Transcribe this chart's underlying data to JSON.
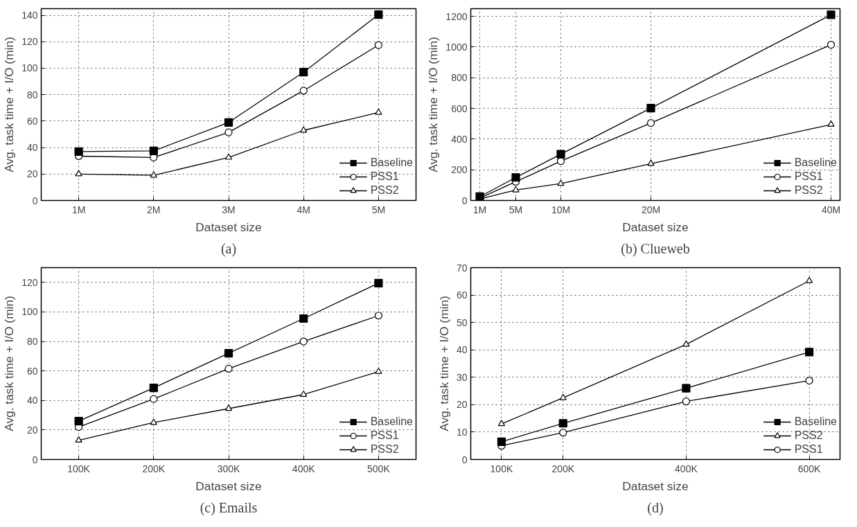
{
  "chart_data": [
    {
      "type": "line",
      "title": "(a)",
      "xlabel": "Dataset size",
      "ylabel": "Avg. task time + I/O (min)",
      "x": [
        1,
        2,
        3,
        4,
        5
      ],
      "xlim": [
        0.5,
        5.5
      ],
      "xticks": [
        {
          "value": 1,
          "label": "1M"
        },
        {
          "value": 2,
          "label": "2M"
        },
        {
          "value": 3,
          "label": "3M"
        },
        {
          "value": 4,
          "label": "4M"
        },
        {
          "value": 5,
          "label": "5M"
        }
      ],
      "ylim": [
        0,
        145
      ],
      "yticks": [
        0,
        20,
        40,
        60,
        80,
        100,
        120,
        140
      ],
      "grid": true,
      "legend": "bottom right",
      "series": [
        {
          "name": "Baseline",
          "color": "#000000",
          "marker": "square",
          "values": [
            37,
            37.5,
            59,
            97,
            140.5
          ]
        },
        {
          "name": "PSS1",
          "color": "#000000",
          "marker": "circle",
          "values": [
            33.5,
            32.5,
            51.5,
            83,
            117.5
          ]
        },
        {
          "name": "PSS2",
          "color": "#000000",
          "marker": "triangle",
          "values": [
            20,
            19,
            32.5,
            53,
            66.5
          ]
        }
      ]
    },
    {
      "type": "line",
      "title": "(b) Clueweb",
      "xlabel": "Dataset size",
      "ylabel": "Avg. task time + I/O (min)",
      "x": [
        1,
        5,
        10,
        20,
        40
      ],
      "xlim": [
        0,
        41
      ],
      "xticks": [
        {
          "value": 1,
          "label": "1M"
        },
        {
          "value": 5,
          "label": "5M"
        },
        {
          "value": 10,
          "label": "10M"
        },
        {
          "value": 20,
          "label": "20M"
        },
        {
          "value": 40,
          "label": "40M"
        }
      ],
      "ylim": [
        0,
        1250
      ],
      "yticks": [
        0,
        200,
        400,
        600,
        800,
        1000,
        1200
      ],
      "grid": true,
      "legend": "bottom right",
      "series": [
        {
          "name": "Baseline",
          "color": "#000000",
          "marker": "square",
          "values": [
            25,
            150,
            302,
            602,
            1210
          ]
        },
        {
          "name": "PSS1",
          "color": "#000000",
          "marker": "circle",
          "values": [
            15,
            122,
            257,
            505,
            1015
          ]
        },
        {
          "name": "PSS2",
          "color": "#000000",
          "marker": "triangle",
          "values": [
            10,
            68,
            110,
            240,
            495
          ]
        }
      ]
    },
    {
      "type": "line",
      "title": "(c) Emails",
      "xlabel": "Dataset size",
      "ylabel": "Avg. task time + I/O (min)",
      "x": [
        100,
        200,
        300,
        400,
        500
      ],
      "xlim": [
        50,
        550
      ],
      "xticks": [
        {
          "value": 100,
          "label": "100K"
        },
        {
          "value": 200,
          "label": "200K"
        },
        {
          "value": 300,
          "label": "300K"
        },
        {
          "value": 400,
          "label": "400K"
        },
        {
          "value": 500,
          "label": "500K"
        }
      ],
      "ylim": [
        0,
        130
      ],
      "yticks": [
        0,
        20,
        40,
        60,
        80,
        100,
        120
      ],
      "grid": true,
      "legend": "bottom right",
      "series": [
        {
          "name": "Baseline",
          "color": "#000000",
          "marker": "square",
          "values": [
            26,
            48.5,
            72,
            95.5,
            119.5
          ]
        },
        {
          "name": "PSS1",
          "color": "#000000",
          "marker": "circle",
          "values": [
            22,
            41,
            61.5,
            80,
            97.5
          ]
        },
        {
          "name": "PSS2",
          "color": "#000000",
          "marker": "triangle",
          "values": [
            13,
            25,
            34.5,
            44,
            59.5
          ]
        }
      ]
    },
    {
      "type": "line",
      "title": "(d)",
      "xlabel": "Dataset size",
      "ylabel": "Avg. task time + I/O (min)",
      "x": [
        100,
        200,
        400,
        600
      ],
      "xlim": [
        50,
        650
      ],
      "xticks": [
        {
          "value": 100,
          "label": "100K"
        },
        {
          "value": 200,
          "label": "200K"
        },
        {
          "value": 400,
          "label": "400K"
        },
        {
          "value": 600,
          "label": "600K"
        }
      ],
      "ylim": [
        0,
        70
      ],
      "yticks": [
        0,
        10,
        20,
        30,
        40,
        50,
        60,
        70
      ],
      "grid": true,
      "legend": "bottom right",
      "series": [
        {
          "name": "Baseline",
          "color": "#000000",
          "marker": "square",
          "values": [
            6.5,
            13.2,
            26,
            39.2
          ]
        },
        {
          "name": "PSS2",
          "color": "#000000",
          "marker": "triangle",
          "values": [
            13,
            22.5,
            42,
            65.2
          ]
        },
        {
          "name": "PSS1",
          "color": "#000000",
          "marker": "circle",
          "values": [
            5,
            9.8,
            21.2,
            28.8
          ]
        }
      ]
    }
  ]
}
